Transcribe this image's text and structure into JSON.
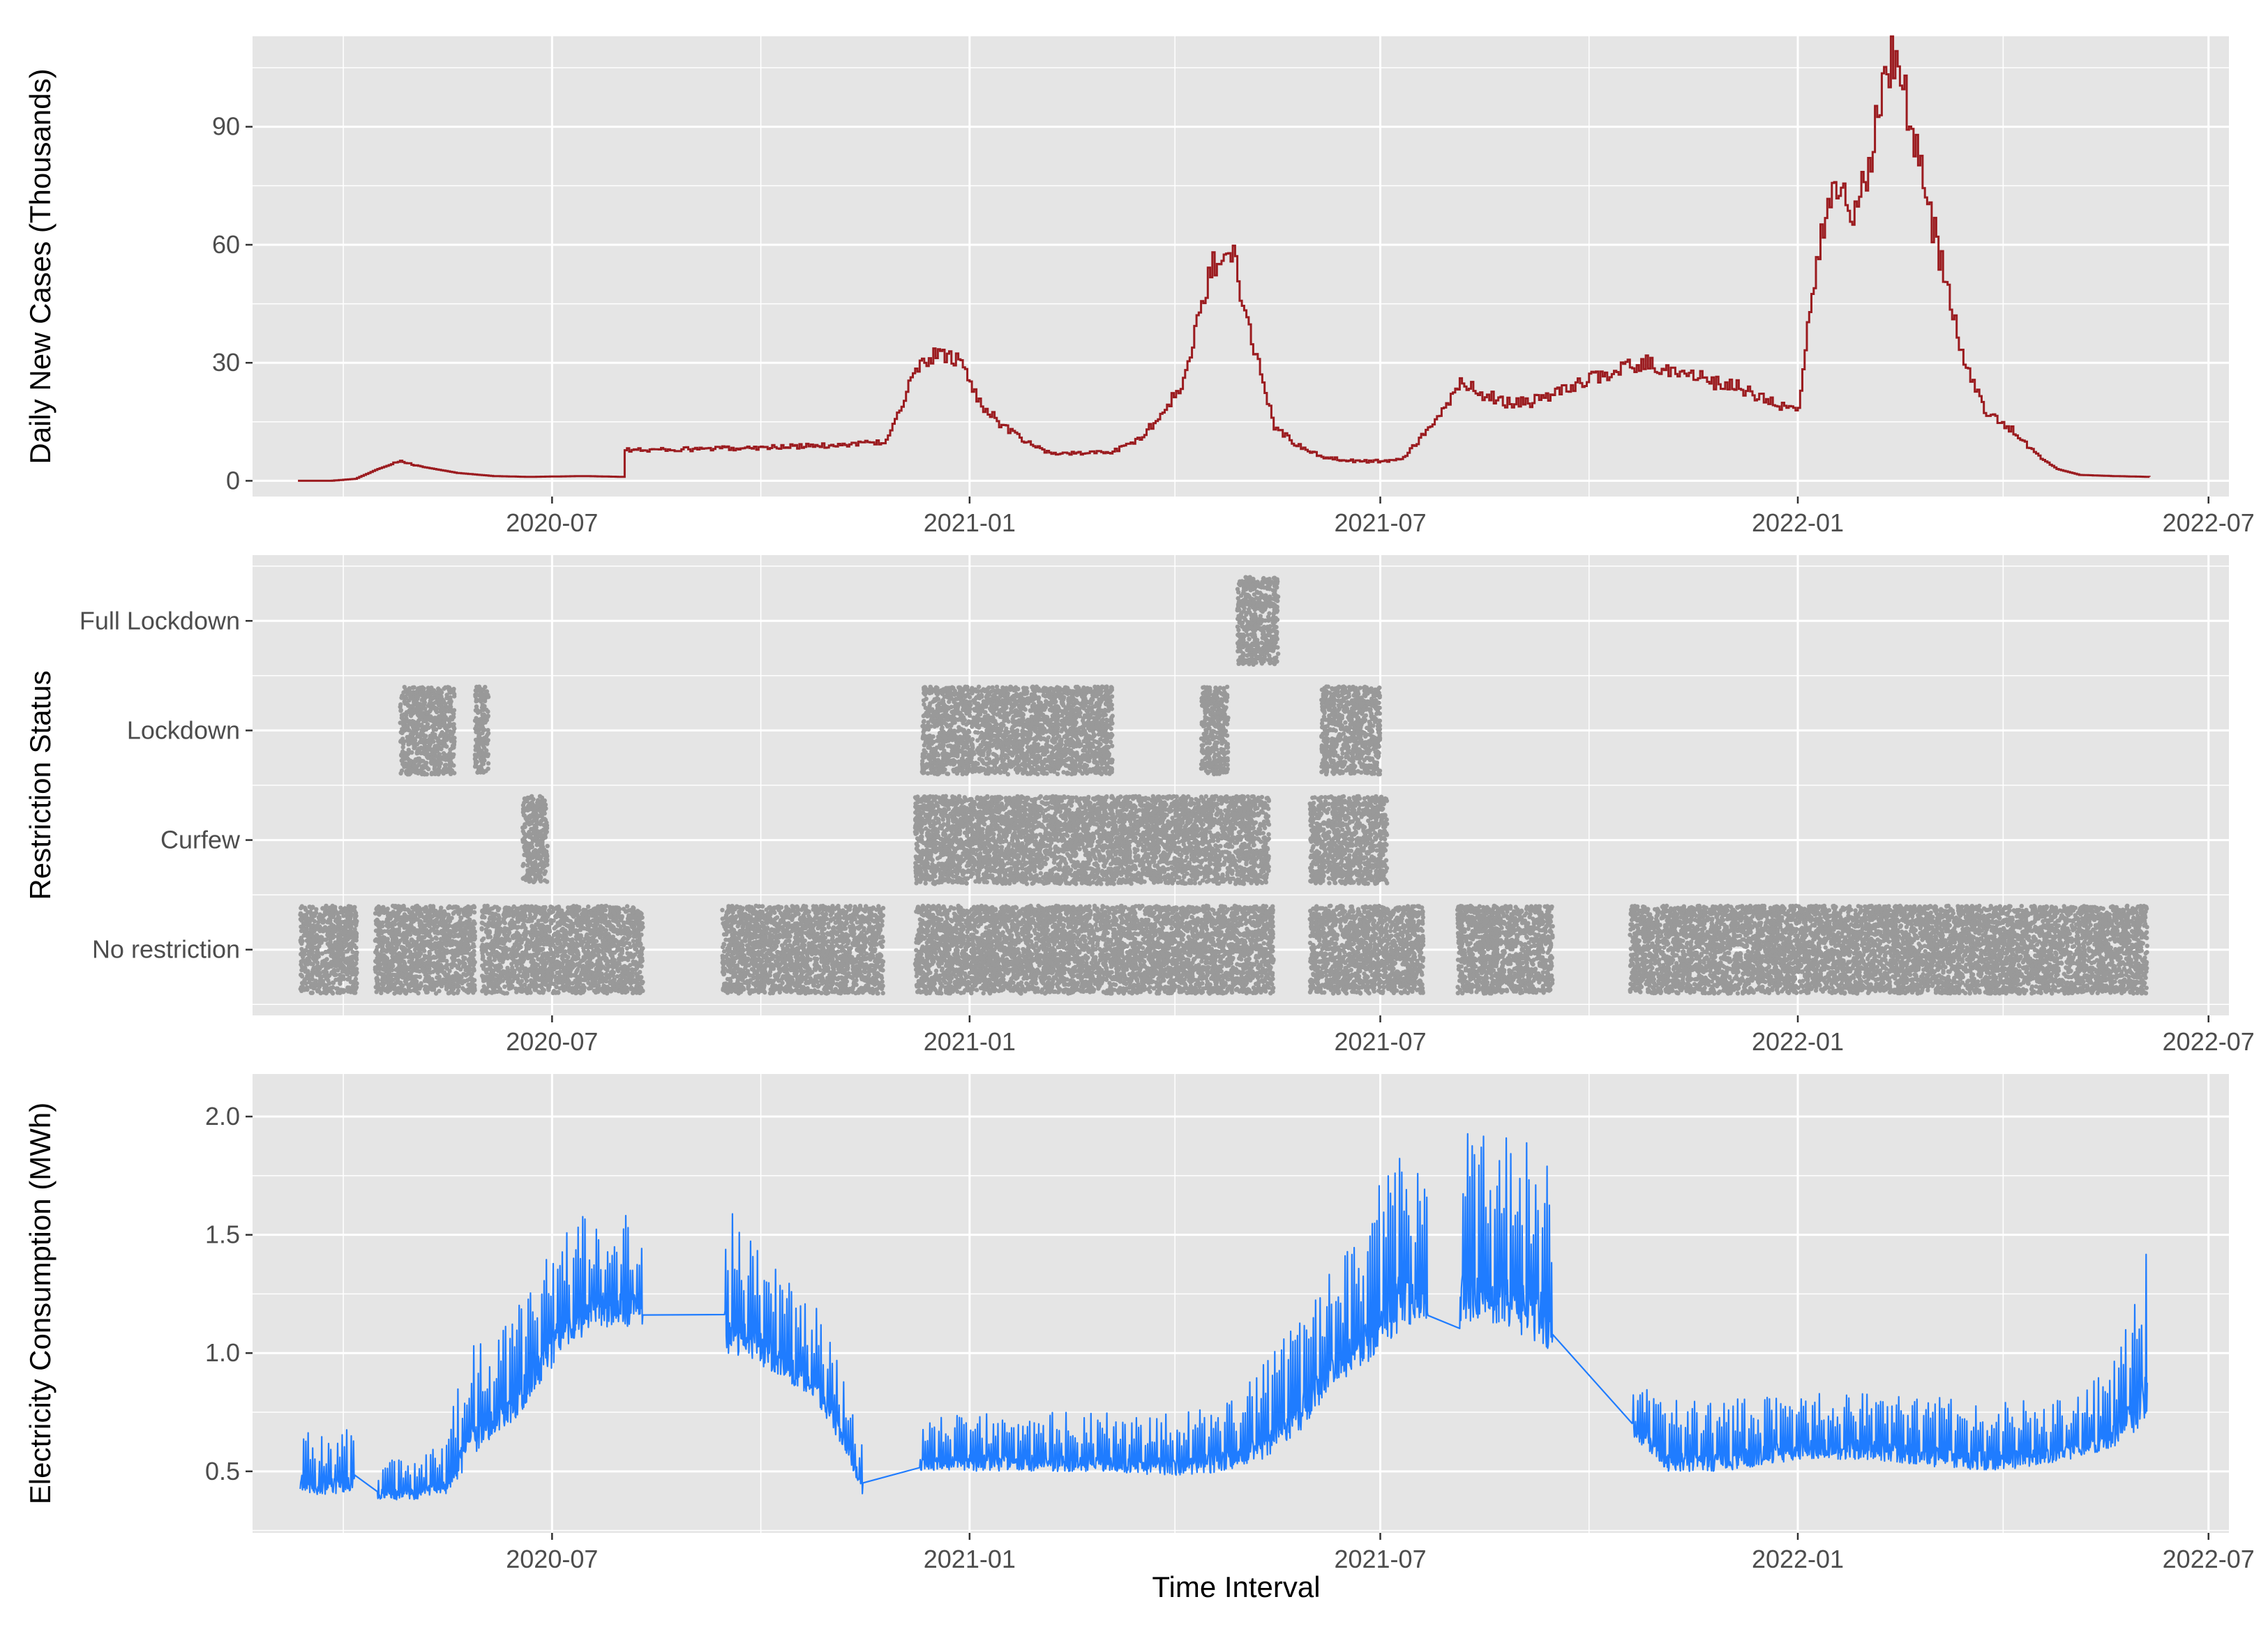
{
  "colors": {
    "panel_bg": "#e5e5e5",
    "grid": "#ffffff",
    "cases_line": "#9b1b1f",
    "restriction_points": "#999999",
    "electricity_line": "#1f7cff"
  },
  "figure": {
    "xlabel": "Time Interval"
  },
  "chart_data": [
    {
      "type": "line",
      "ylabel": "Daily New Cases (Thousands)",
      "xlabel": "",
      "xlim": [
        "2020-02-20",
        "2022-07-10"
      ],
      "ylim": [
        -4,
        113
      ],
      "x_ticks": [
        "2020-07-01",
        "2021-01-01",
        "2021-07-01",
        "2022-01-01",
        "2022-07-01"
      ],
      "x_tick_labels": [
        "2020-07",
        "2021-01",
        "2021-07",
        "2022-01",
        "2022-07"
      ],
      "y_ticks": [
        0,
        30,
        60,
        90
      ],
      "y_tick_labels": [
        "0",
        "30",
        "60",
        "90"
      ],
      "grid": true,
      "series": [
        {
          "x": [
            "2020-03-11",
            "2020-03-25",
            "2020-04-05",
            "2020-04-15",
            "2020-04-25",
            "2020-05-05",
            "2020-05-20",
            "2020-06-05",
            "2020-06-20",
            "2020-07-15",
            "2020-08-01",
            "2020-08-01",
            "2020-09-01",
            "2020-10-01",
            "2020-11-01",
            "2020-11-25",
            "2020-12-05",
            "2020-12-12",
            "2020-12-20",
            "2020-12-28",
            "2021-01-05",
            "2021-01-15",
            "2021-01-25",
            "2021-02-05",
            "2021-02-20",
            "2021-03-05",
            "2021-03-15",
            "2021-03-25",
            "2021-04-05",
            "2021-04-12",
            "2021-04-18",
            "2021-04-25",
            "2021-05-05",
            "2021-05-15",
            "2021-05-25",
            "2021-06-05",
            "2021-06-20",
            "2021-07-01",
            "2021-07-10",
            "2021-07-25",
            "2021-08-05",
            "2021-08-15",
            "2021-08-25",
            "2021-09-05",
            "2021-09-15",
            "2021-10-01",
            "2021-10-25",
            "2021-11-05",
            "2021-11-15",
            "2021-11-25",
            "2021-12-05",
            "2021-12-15",
            "2021-12-25",
            "2022-01-01",
            "2022-01-05",
            "2022-01-12",
            "2022-01-18",
            "2022-01-25",
            "2022-02-01",
            "2022-02-05",
            "2022-02-12",
            "2022-02-18",
            "2022-02-25",
            "2022-03-05",
            "2022-03-15",
            "2022-03-25",
            "2022-04-05",
            "2022-04-15",
            "2022-04-25",
            "2022-05-05",
            "2022-05-20",
            "2022-06-05"
          ],
          "values": [
            0,
            0,
            0.5,
            3,
            5,
            3.5,
            2,
            1.2,
            1,
            1.2,
            1,
            7.8,
            8,
            8.5,
            9,
            10,
            24,
            31,
            32,
            30,
            20,
            14,
            10,
            7,
            7,
            7.5,
            10,
            16,
            25,
            42,
            55,
            62,
            36,
            14,
            9,
            6,
            5,
            5,
            5.5,
            15,
            25,
            22,
            20,
            20,
            22,
            26,
            30,
            28,
            27,
            25,
            24,
            21,
            19,
            18,
            38,
            65,
            76,
            68,
            80,
            98,
            110,
            95,
            75,
            55,
            30,
            17,
            13,
            7,
            3,
            1.5,
            1.2,
            1
          ]
        }
      ]
    },
    {
      "type": "scatter",
      "ylabel": "Restriction Status",
      "xlabel": "",
      "xlim": [
        "2020-02-20",
        "2022-07-10"
      ],
      "categories": [
        "No restriction",
        "Curfew",
        "Lockdown",
        "Full Lockdown"
      ],
      "x_ticks": [
        "2020-07-01",
        "2021-01-01",
        "2021-07-01",
        "2022-01-01",
        "2022-07-01"
      ],
      "x_tick_labels": [
        "2020-07",
        "2021-01",
        "2021-07",
        "2022-01",
        "2022-07"
      ],
      "grid": true,
      "intervals": [
        {
          "status": "No restriction",
          "start": "2020-03-12",
          "end": "2020-04-06"
        },
        {
          "status": "No restriction",
          "start": "2020-04-14",
          "end": "2020-05-28"
        },
        {
          "status": "No restriction",
          "start": "2020-05-31",
          "end": "2020-08-10"
        },
        {
          "status": "No restriction",
          "start": "2020-09-14",
          "end": "2020-11-24"
        },
        {
          "status": "No restriction",
          "start": "2020-12-08",
          "end": "2021-05-15"
        },
        {
          "status": "No restriction",
          "start": "2021-05-31",
          "end": "2021-07-20"
        },
        {
          "status": "No restriction",
          "start": "2021-08-04",
          "end": "2021-09-15"
        },
        {
          "status": "No restriction",
          "start": "2021-10-19",
          "end": "2022-06-04"
        },
        {
          "status": "Curfew",
          "start": "2020-06-18",
          "end": "2020-06-29"
        },
        {
          "status": "Curfew",
          "start": "2020-12-08",
          "end": "2021-05-13"
        },
        {
          "status": "Curfew",
          "start": "2021-05-31",
          "end": "2021-07-04"
        },
        {
          "status": "Lockdown",
          "start": "2020-04-25",
          "end": "2020-05-19"
        },
        {
          "status": "Lockdown",
          "start": "2020-05-28",
          "end": "2020-06-03"
        },
        {
          "status": "Lockdown",
          "start": "2020-12-11",
          "end": "2021-03-05"
        },
        {
          "status": "Lockdown",
          "start": "2021-04-13",
          "end": "2021-04-25"
        },
        {
          "status": "Lockdown",
          "start": "2021-06-05",
          "end": "2021-07-01"
        },
        {
          "status": "Full Lockdown",
          "start": "2021-04-29",
          "end": "2021-05-17"
        }
      ]
    },
    {
      "type": "line",
      "ylabel": "Electricity Consumption (MWh)",
      "xlabel": "Time Interval",
      "xlim": [
        "2020-02-20",
        "2022-07-10"
      ],
      "ylim": [
        0.24,
        2.18
      ],
      "x_ticks": [
        "2020-07-01",
        "2021-01-01",
        "2021-07-01",
        "2022-01-01",
        "2022-07-01"
      ],
      "x_tick_labels": [
        "2020-07",
        "2021-01",
        "2021-07",
        "2022-01",
        "2022-07"
      ],
      "y_ticks": [
        0.5,
        1.0,
        1.5,
        2.0
      ],
      "y_tick_labels": [
        "0.5",
        "1.0",
        "1.5",
        "2.0"
      ],
      "grid": true,
      "series": [
        {
          "segments": [
            {
              "x": [
                "2020-03-12",
                "2020-03-20",
                "2020-04-01",
                "2020-04-05"
              ],
              "base": [
                0.42,
                0.4,
                0.4,
                0.44
              ],
              "peak": [
                0.68,
                0.65,
                0.7,
                0.68
              ]
            },
            {
              "x": [
                "2020-04-15",
                "2020-05-01",
                "2020-05-15",
                "2020-05-25",
                "2020-06-05",
                "2020-06-15",
                "2020-06-25",
                "2020-07-05",
                "2020-07-20",
                "2020-08-10"
              ],
              "base": [
                0.38,
                0.38,
                0.4,
                0.52,
                0.65,
                0.72,
                0.85,
                1.0,
                1.1,
                1.12
              ],
              "peak": [
                0.55,
                0.55,
                0.62,
                1.1,
                1.05,
                1.2,
                1.4,
                1.55,
                1.65,
                1.6
              ]
            },
            {
              "x": [
                "2020-09-15",
                "2020-09-25",
                "2020-10-10",
                "2020-10-25",
                "2020-11-05",
                "2020-11-15"
              ],
              "base": [
                1.0,
                0.98,
                0.9,
                0.8,
                0.62,
                0.4
              ],
              "peak": [
                1.65,
                1.5,
                1.35,
                1.2,
                0.95,
                0.6
              ]
            },
            {
              "x": [
                "2020-12-10",
                "2021-01-01",
                "2021-02-01",
                "2021-03-01",
                "2021-04-01",
                "2021-04-25",
                "2021-05-10",
                "2021-05-25",
                "2021-06-10",
                "2021-06-25",
                "2021-07-10",
                "2021-07-22"
              ],
              "base": [
                0.5,
                0.5,
                0.5,
                0.5,
                0.48,
                0.5,
                0.55,
                0.65,
                0.85,
                0.95,
                1.1,
                1.15
              ],
              "peak": [
                0.72,
                0.75,
                0.75,
                0.75,
                0.75,
                0.8,
                0.95,
                1.2,
                1.35,
                1.6,
                1.95,
                1.75
              ]
            },
            {
              "x": [
                "2021-08-05",
                "2021-08-15",
                "2021-08-25",
                "2021-09-05",
                "2021-09-15"
              ],
              "base": [
                1.1,
                1.15,
                1.1,
                1.05,
                1.0
              ],
              "peak": [
                2.05,
                2.0,
                1.95,
                1.9,
                1.8
              ]
            },
            {
              "x": [
                "2021-10-20",
                "2021-11-05",
                "2021-12-01",
                "2022-01-01",
                "2022-02-01",
                "2022-03-01",
                "2022-04-01",
                "2022-05-01",
                "2022-05-20",
                "2022-06-04"
              ],
              "base": [
                0.65,
                0.5,
                0.5,
                0.55,
                0.55,
                0.52,
                0.5,
                0.55,
                0.6,
                0.7
              ],
              "peak": [
                0.95,
                0.8,
                0.8,
                0.85,
                0.85,
                0.82,
                0.8,
                0.8,
                0.95,
                1.5
              ]
            }
          ]
        }
      ]
    }
  ]
}
